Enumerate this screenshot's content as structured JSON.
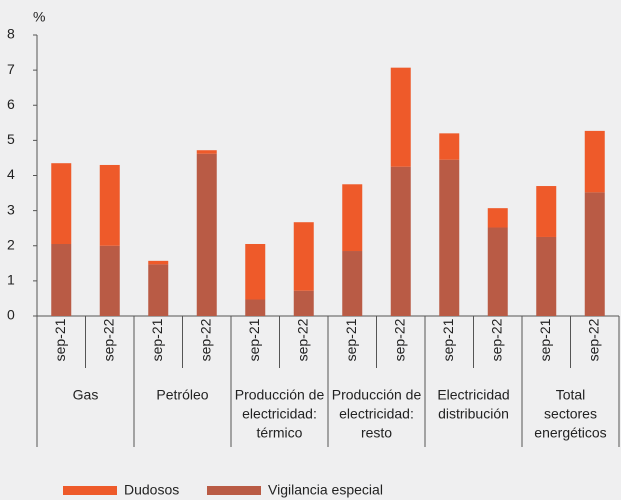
{
  "chart_data": {
    "type": "stacked-bar",
    "y_label": "%",
    "categories": [
      "sep-21",
      "sep-22",
      "sep-21",
      "sep-22",
      "sep-21",
      "sep-22",
      "sep-21",
      "sep-22",
      "sep-21",
      "sep-22",
      "sep-21",
      "sep-22"
    ],
    "groups": [
      [
        "Gas"
      ],
      [
        "Petróleo"
      ],
      [
        "Producción de",
        "electricidad:",
        "térmico"
      ],
      [
        "Producción de",
        "electricidad:",
        "resto"
      ],
      [
        "Electricidad",
        "distribución"
      ],
      [
        "Total",
        "sectores",
        "energéticos"
      ]
    ],
    "series": [
      {
        "name": "Vigilancia especial",
        "color": "#b95b45",
        "values": [
          2.05,
          2.0,
          1.47,
          4.62,
          0.47,
          0.72,
          1.85,
          4.25,
          4.45,
          2.52,
          2.25,
          3.52
        ]
      },
      {
        "name": "Dudosos",
        "color": "#ee5a2a",
        "values": [
          2.3,
          2.3,
          0.1,
          0.1,
          1.58,
          1.95,
          1.9,
          2.82,
          0.75,
          0.55,
          1.45,
          1.75
        ]
      }
    ],
    "legend_order": [
      1,
      0
    ],
    "ylim": [
      0,
      8
    ],
    "yticks": [
      0,
      1,
      2,
      3,
      4,
      5,
      6,
      7,
      8
    ]
  }
}
